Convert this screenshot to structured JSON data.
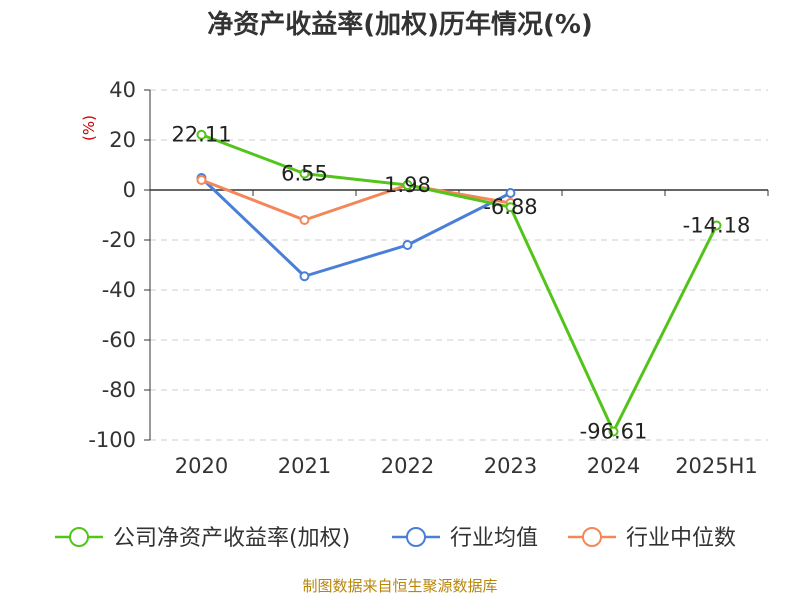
{
  "chart_data": {
    "type": "line",
    "title": "净资产收益率(加权)历年情况(%)",
    "ylabel": "(%)",
    "categories": [
      "2020",
      "2021",
      "2022",
      "2023",
      "2024",
      "2025H1"
    ],
    "ylim": [
      -100,
      40
    ],
    "yticks": [
      40,
      20,
      0,
      -20,
      -40,
      -60,
      -80,
      -100
    ],
    "grid": true,
    "legend_position": "bottom",
    "series": [
      {
        "name": "公司净资产收益率(加权)",
        "color": "#52c41a",
        "values": [
          22.11,
          6.55,
          1.98,
          -6.88,
          -96.61,
          -14.18
        ],
        "labels": [
          "22.11",
          "6.55",
          "1.98",
          "-6.88",
          "-96.61",
          "-14.18"
        ]
      },
      {
        "name": "行业均值",
        "color": "#4a7fd8",
        "values": [
          4.8,
          -34.5,
          -22.0,
          -1.2,
          null,
          null
        ]
      },
      {
        "name": "行业中位数",
        "color": "#f4875a",
        "values": [
          4.0,
          -12.0,
          2.0,
          -5.2,
          null,
          null
        ]
      }
    ]
  },
  "source": "制图数据来自恒生聚源数据库"
}
